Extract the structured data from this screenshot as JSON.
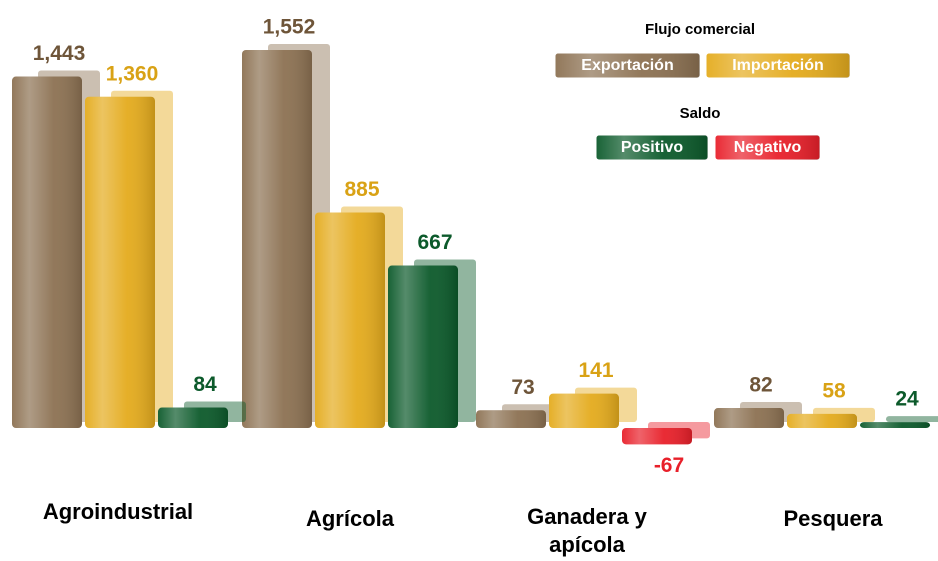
{
  "chart_data": {
    "type": "bar",
    "categories": [
      "Agroindustrial",
      "Agrícola",
      "Ganadera y apícola",
      "Pesquera"
    ],
    "legend_title": "Flujo comercial",
    "series": [
      {
        "name": "Exportación",
        "color": "#8c7152",
        "label_color": "#6e5539",
        "values": [
          1443,
          1552,
          73,
          82
        ],
        "value_labels": [
          "1,443",
          "1,552",
          "73",
          "82"
        ]
      },
      {
        "name": "Importación",
        "color": "#e4ab1d",
        "label_color": "#d9a215",
        "values": [
          1360,
          885,
          141,
          58
        ],
        "value_labels": [
          "1,360",
          "885",
          "141",
          "58"
        ]
      },
      {
        "name": "Saldo",
        "sign_labels": [
          "Positivo",
          "Negativo"
        ],
        "colors": [
          "#0c5a2b",
          "#e8202a"
        ],
        "values": [
          84,
          667,
          -67,
          24
        ]
      }
    ]
  }
}
